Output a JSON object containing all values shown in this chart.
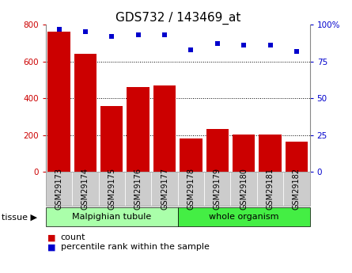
{
  "title": "GDS732 / 143469_at",
  "samples": [
    "GSM29173",
    "GSM29174",
    "GSM29175",
    "GSM29176",
    "GSM29177",
    "GSM29178",
    "GSM29179",
    "GSM29180",
    "GSM29181",
    "GSM29182"
  ],
  "counts": [
    760,
    640,
    360,
    460,
    470,
    180,
    235,
    205,
    205,
    165
  ],
  "percentiles": [
    97,
    95,
    92,
    93,
    93,
    83,
    87,
    86,
    86,
    82
  ],
  "bar_color": "#cc0000",
  "dot_color": "#0000cc",
  "ylim_left": [
    0,
    800
  ],
  "ylim_right": [
    0,
    100
  ],
  "yticks_left": [
    0,
    200,
    400,
    600,
    800
  ],
  "yticks_right": [
    0,
    25,
    50,
    75,
    100
  ],
  "ytick_labels_right": [
    "0",
    "25",
    "50",
    "75",
    "100%"
  ],
  "tissue_groups": [
    {
      "label": "Malpighian tubule",
      "start": 0,
      "end": 5,
      "color": "#aaffaa"
    },
    {
      "label": "whole organism",
      "start": 5,
      "end": 10,
      "color": "#44ee44"
    }
  ],
  "legend_count_label": "count",
  "legend_pct_label": "percentile rank within the sample",
  "tissue_label": "tissue",
  "tick_label_color_left": "#cc0000",
  "tick_label_color_right": "#0000cc",
  "xtick_bg_color": "#cccccc",
  "bar_width": 0.85,
  "title_fontsize": 11,
  "axis_fontsize": 7.5,
  "legend_fontsize": 8
}
